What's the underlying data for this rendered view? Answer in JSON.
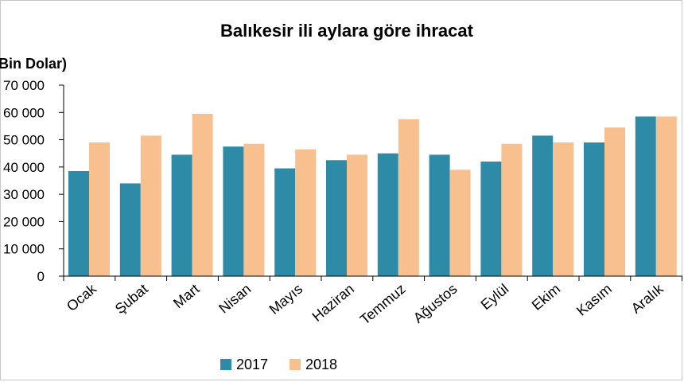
{
  "chart_data": {
    "type": "bar",
    "title": "Balıkesir ili aylara göre ihracat",
    "unit_label": "(Bin  Dolar)",
    "xlabel": "",
    "ylabel": "",
    "ylim": [
      0,
      70000
    ],
    "y_ticks": [
      0,
      10000,
      20000,
      30000,
      40000,
      50000,
      60000,
      70000
    ],
    "y_tick_labels": [
      "0",
      "10 000",
      "20 000",
      "30 000",
      "40 000",
      "50 000",
      "60 000",
      "70 000"
    ],
    "categories": [
      "Ocak",
      "Şubat",
      "Mart",
      "Nisan",
      "Mayıs",
      "Haziran",
      "Temmuz",
      "Ağustos",
      "Eylül",
      "Ekim",
      "Kasım",
      "Aralık"
    ],
    "series": [
      {
        "name": "2017",
        "color": "#2E8BA8",
        "values": [
          38500,
          34000,
          44500,
          47500,
          39500,
          42500,
          45000,
          44500,
          42000,
          51500,
          49000,
          58500
        ]
      },
      {
        "name": "2018",
        "color": "#F9C08F",
        "values": [
          49000,
          51500,
          59500,
          48500,
          46500,
          44500,
          57500,
          39000,
          48500,
          49000,
          54500,
          58500
        ]
      }
    ],
    "grid": false,
    "legend_position": "bottom"
  }
}
